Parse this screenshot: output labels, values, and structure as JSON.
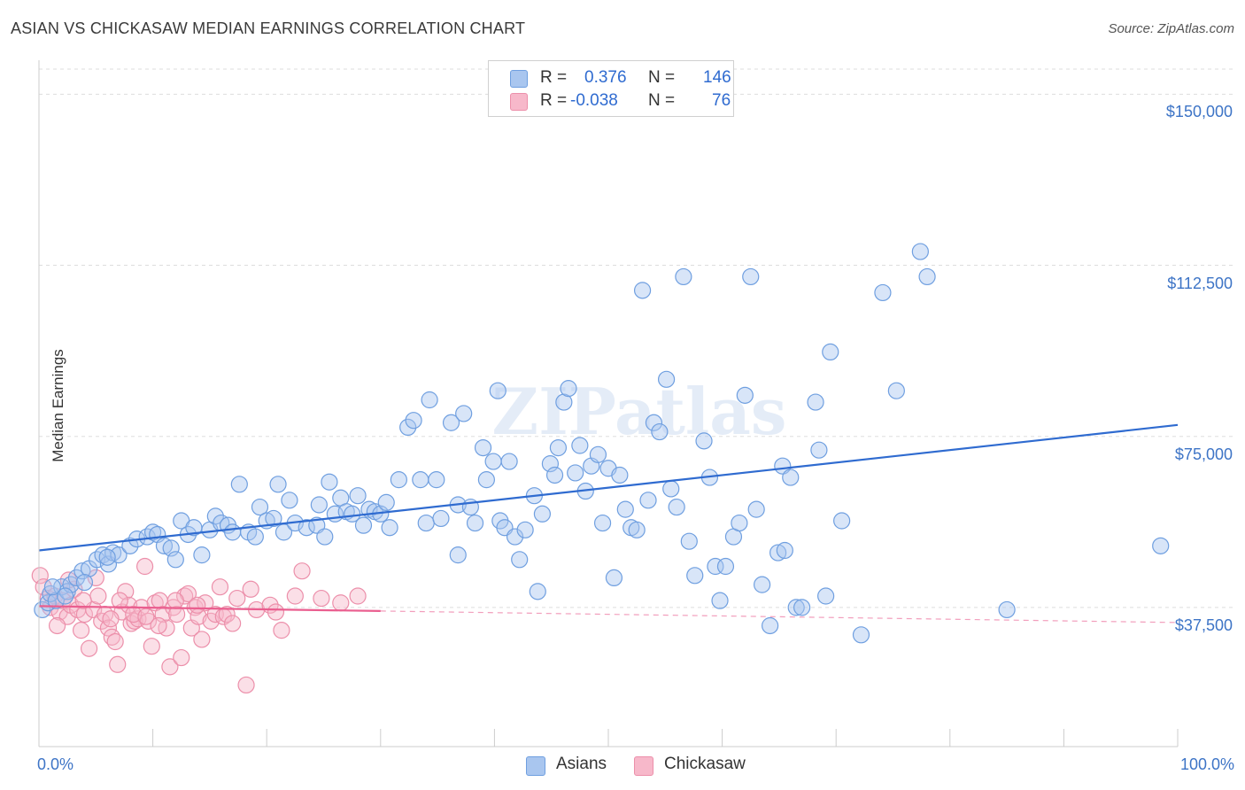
{
  "chart_data": {
    "type": "scatter",
    "title": "ASIAN VS CHICKASAW MEDIAN EARNINGS CORRELATION CHART",
    "source": "Source: ZipAtlas.com",
    "xlabel": "",
    "ylabel": "Median Earnings",
    "xlim": [
      0,
      100
    ],
    "ylim": [
      7000,
      159000
    ],
    "y_ticks": [
      {
        "value": 37500,
        "label": "$37,500"
      },
      {
        "value": 75000,
        "label": "$75,000"
      },
      {
        "value": 112500,
        "label": "$112,500"
      },
      {
        "value": 150000,
        "label": "$150,000"
      }
    ],
    "x_ticks": [
      {
        "value": 0,
        "label": "0.0%"
      },
      {
        "value": 100,
        "label": "100.0%"
      }
    ],
    "legend": {
      "placement": "top-center",
      "entries": [
        {
          "r_label": "R =",
          "r_value": "0.376",
          "n_label": "N =",
          "n_value": "146"
        },
        {
          "r_label": "R =",
          "r_value": "-0.038",
          "n_label": "N =",
          "n_value": "76"
        }
      ]
    },
    "bottom_legend": [
      "Asians",
      "Chickasaw"
    ],
    "watermark": "ZIPatlas",
    "colors": {
      "asian_fill": "#a9c6ef",
      "asian_stroke": "#6f9fe0",
      "asian_line": "#2f6bd0",
      "chickasaw_fill": "#f7b8ca",
      "chickasaw_stroke": "#ec8faa",
      "chickasaw_line": "#ea5e8f",
      "tick_label": "#3d74c6",
      "grid": "#dddddd"
    },
    "series": [
      {
        "name": "Asians",
        "trend": {
          "x0": 0,
          "y0": 50000,
          "x1": 100,
          "y1": 77500,
          "dashed_from": null
        },
        "points": [
          [
            0.3,
            37000
          ],
          [
            0.8,
            38500
          ],
          [
            1.0,
            40500
          ],
          [
            1.5,
            39000
          ],
          [
            2.0,
            42000
          ],
          [
            2.5,
            41000
          ],
          [
            2.8,
            42500
          ],
          [
            3.3,
            44000
          ],
          [
            3.8,
            45500
          ],
          [
            4.4,
            46000
          ],
          [
            5.1,
            48000
          ],
          [
            5.6,
            49000
          ],
          [
            6.1,
            47000
          ],
          [
            6.5,
            49500
          ],
          [
            7.0,
            49000
          ],
          [
            8.0,
            51000
          ],
          [
            8.6,
            52500
          ],
          [
            9.5,
            53000
          ],
          [
            10.0,
            54000
          ],
          [
            10.4,
            53500
          ],
          [
            11.0,
            51000
          ],
          [
            11.6,
            50500
          ],
          [
            12.0,
            48000
          ],
          [
            12.5,
            56500
          ],
          [
            13.1,
            53500
          ],
          [
            13.6,
            55000
          ],
          [
            14.3,
            49000
          ],
          [
            15.0,
            54500
          ],
          [
            15.5,
            57500
          ],
          [
            16.0,
            56000
          ],
          [
            16.6,
            55500
          ],
          [
            17.0,
            54000
          ],
          [
            17.6,
            64500
          ],
          [
            18.4,
            54000
          ],
          [
            19.0,
            53000
          ],
          [
            19.4,
            59500
          ],
          [
            20.0,
            56500
          ],
          [
            20.6,
            57000
          ],
          [
            21.0,
            64500
          ],
          [
            21.5,
            54000
          ],
          [
            22.0,
            61000
          ],
          [
            22.5,
            56000
          ],
          [
            23.5,
            55000
          ],
          [
            24.4,
            55500
          ],
          [
            24.6,
            60000
          ],
          [
            25.1,
            53000
          ],
          [
            25.5,
            65000
          ],
          [
            26.0,
            58000
          ],
          [
            26.5,
            61500
          ],
          [
            27.0,
            58500
          ],
          [
            27.5,
            58000
          ],
          [
            28.0,
            62000
          ],
          [
            28.5,
            55500
          ],
          [
            29.0,
            59000
          ],
          [
            29.5,
            58500
          ],
          [
            30.0,
            58000
          ],
          [
            30.5,
            60500
          ],
          [
            30.8,
            55000
          ],
          [
            31.6,
            65500
          ],
          [
            32.4,
            77000
          ],
          [
            32.9,
            78500
          ],
          [
            33.5,
            65500
          ],
          [
            34.0,
            56000
          ],
          [
            34.3,
            83000
          ],
          [
            34.9,
            65500
          ],
          [
            35.3,
            57000
          ],
          [
            36.2,
            78000
          ],
          [
            36.8,
            49000
          ],
          [
            36.8,
            60000
          ],
          [
            37.3,
            80000
          ],
          [
            37.9,
            59500
          ],
          [
            38.3,
            56000
          ],
          [
            39.0,
            72500
          ],
          [
            39.3,
            65500
          ],
          [
            39.9,
            69500
          ],
          [
            40.3,
            85000
          ],
          [
            40.5,
            56500
          ],
          [
            40.9,
            55000
          ],
          [
            41.3,
            69500
          ],
          [
            41.8,
            53000
          ],
          [
            42.2,
            48000
          ],
          [
            42.7,
            54500
          ],
          [
            43.5,
            62000
          ],
          [
            43.8,
            41000
          ],
          [
            44.2,
            58000
          ],
          [
            44.9,
            69000
          ],
          [
            45.3,
            66500
          ],
          [
            45.6,
            72500
          ],
          [
            46.1,
            82500
          ],
          [
            46.5,
            85500
          ],
          [
            47.1,
            67000
          ],
          [
            47.5,
            73000
          ],
          [
            48.0,
            63000
          ],
          [
            48.5,
            68500
          ],
          [
            49.1,
            71000
          ],
          [
            49.5,
            56000
          ],
          [
            50.0,
            68000
          ],
          [
            50.5,
            44000
          ],
          [
            51.0,
            66500
          ],
          [
            51.5,
            59000
          ],
          [
            52.0,
            55000
          ],
          [
            52.5,
            54500
          ],
          [
            53.0,
            107000
          ],
          [
            53.5,
            61000
          ],
          [
            54.0,
            78000
          ],
          [
            54.5,
            76000
          ],
          [
            55.1,
            87500
          ],
          [
            55.5,
            63500
          ],
          [
            56.0,
            59500
          ],
          [
            56.6,
            110000
          ],
          [
            57.1,
            52000
          ],
          [
            57.6,
            44500
          ],
          [
            58.4,
            74000
          ],
          [
            58.9,
            66000
          ],
          [
            59.4,
            46500
          ],
          [
            59.8,
            39000
          ],
          [
            60.3,
            46500
          ],
          [
            61.0,
            53000
          ],
          [
            61.5,
            56000
          ],
          [
            62.0,
            84000
          ],
          [
            62.5,
            110000
          ],
          [
            63.0,
            59000
          ],
          [
            63.5,
            42500
          ],
          [
            64.2,
            33500
          ],
          [
            64.9,
            49500
          ],
          [
            65.3,
            68500
          ],
          [
            65.5,
            50000
          ],
          [
            66.0,
            66000
          ],
          [
            66.5,
            37500
          ],
          [
            67.0,
            37500
          ],
          [
            68.2,
            82500
          ],
          [
            68.5,
            72000
          ],
          [
            69.1,
            40000
          ],
          [
            69.5,
            93500
          ],
          [
            70.5,
            56500
          ],
          [
            72.2,
            31500
          ],
          [
            74.1,
            106500
          ],
          [
            75.3,
            85000
          ],
          [
            77.4,
            115500
          ],
          [
            78.0,
            110000
          ],
          [
            85.0,
            37000
          ],
          [
            98.5,
            51000
          ],
          [
            1.2,
            42000
          ],
          [
            2.3,
            40000
          ],
          [
            4.0,
            43000
          ],
          [
            6.0,
            48500
          ]
        ]
      },
      {
        "name": "Chickasaw",
        "trend": {
          "x0": 0,
          "y0": 37800,
          "x1": 100,
          "y1": 34200,
          "dashed_from": 30
        },
        "points": [
          [
            0.1,
            44500
          ],
          [
            0.4,
            42000
          ],
          [
            0.8,
            39500
          ],
          [
            1.0,
            37500
          ],
          [
            1.4,
            40000
          ],
          [
            1.8,
            36500
          ],
          [
            2.1,
            39000
          ],
          [
            2.5,
            35500
          ],
          [
            2.8,
            38000
          ],
          [
            3.1,
            41500
          ],
          [
            3.4,
            37000
          ],
          [
            3.7,
            32500
          ],
          [
            4.0,
            36000
          ],
          [
            4.4,
            28500
          ],
          [
            4.8,
            37000
          ],
          [
            5.0,
            44000
          ],
          [
            5.2,
            40000
          ],
          [
            5.5,
            34500
          ],
          [
            5.8,
            36000
          ],
          [
            6.1,
            33000
          ],
          [
            6.4,
            31000
          ],
          [
            6.7,
            30000
          ],
          [
            6.9,
            25000
          ],
          [
            7.3,
            36500
          ],
          [
            7.6,
            41000
          ],
          [
            7.9,
            38000
          ],
          [
            8.1,
            34000
          ],
          [
            8.4,
            34500
          ],
          [
            8.7,
            35000
          ],
          [
            9.0,
            37500
          ],
          [
            9.3,
            46500
          ],
          [
            9.6,
            34500
          ],
          [
            9.9,
            29000
          ],
          [
            10.2,
            38500
          ],
          [
            10.6,
            39000
          ],
          [
            10.9,
            36000
          ],
          [
            11.2,
            33000
          ],
          [
            11.5,
            24500
          ],
          [
            11.8,
            37500
          ],
          [
            12.1,
            36000
          ],
          [
            12.5,
            26500
          ],
          [
            12.8,
            40000
          ],
          [
            13.1,
            40500
          ],
          [
            13.4,
            33000
          ],
          [
            13.7,
            37500
          ],
          [
            14.0,
            35500
          ],
          [
            14.3,
            30500
          ],
          [
            14.6,
            38500
          ],
          [
            15.1,
            34500
          ],
          [
            15.5,
            36000
          ],
          [
            15.9,
            42000
          ],
          [
            16.2,
            35500
          ],
          [
            16.5,
            36000
          ],
          [
            17.0,
            34000
          ],
          [
            17.4,
            39500
          ],
          [
            18.2,
            20500
          ],
          [
            18.6,
            41500
          ],
          [
            19.1,
            37000
          ],
          [
            20.3,
            38000
          ],
          [
            20.8,
            36500
          ],
          [
            21.3,
            32500
          ],
          [
            22.5,
            40000
          ],
          [
            23.1,
            45500
          ],
          [
            24.8,
            39500
          ],
          [
            26.5,
            38500
          ],
          [
            28.0,
            40000
          ],
          [
            1.6,
            33500
          ],
          [
            2.6,
            43500
          ],
          [
            3.9,
            39000
          ],
          [
            6.3,
            35000
          ],
          [
            7.1,
            39000
          ],
          [
            8.3,
            36000
          ],
          [
            9.4,
            35500
          ],
          [
            10.5,
            33500
          ],
          [
            12.0,
            39000
          ],
          [
            13.9,
            38000
          ]
        ]
      }
    ]
  }
}
